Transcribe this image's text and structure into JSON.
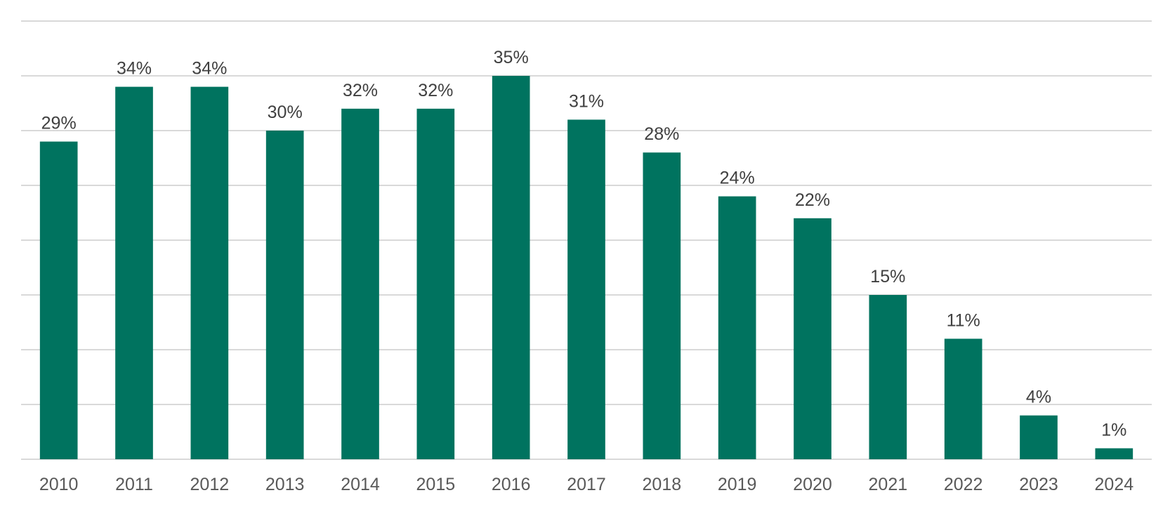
{
  "chart_data": {
    "type": "bar",
    "categories": [
      "2010",
      "2011",
      "2012",
      "2013",
      "2014",
      "2015",
      "2016",
      "2017",
      "2018",
      "2019",
      "2020",
      "2021",
      "2022",
      "2023",
      "2024"
    ],
    "values": [
      29,
      34,
      34,
      30,
      32,
      32,
      35,
      31,
      28,
      24,
      22,
      15,
      11,
      4,
      1
    ],
    "data_labels": [
      "29%",
      "34%",
      "34%",
      "30%",
      "32%",
      "32%",
      "35%",
      "31%",
      "28%",
      "24%",
      "22%",
      "15%",
      "11%",
      "4%",
      "1%"
    ],
    "ylim": [
      0,
      40
    ],
    "gridline_step": 5,
    "grid": true,
    "legend": "none",
    "bar_color": "#00735f"
  }
}
